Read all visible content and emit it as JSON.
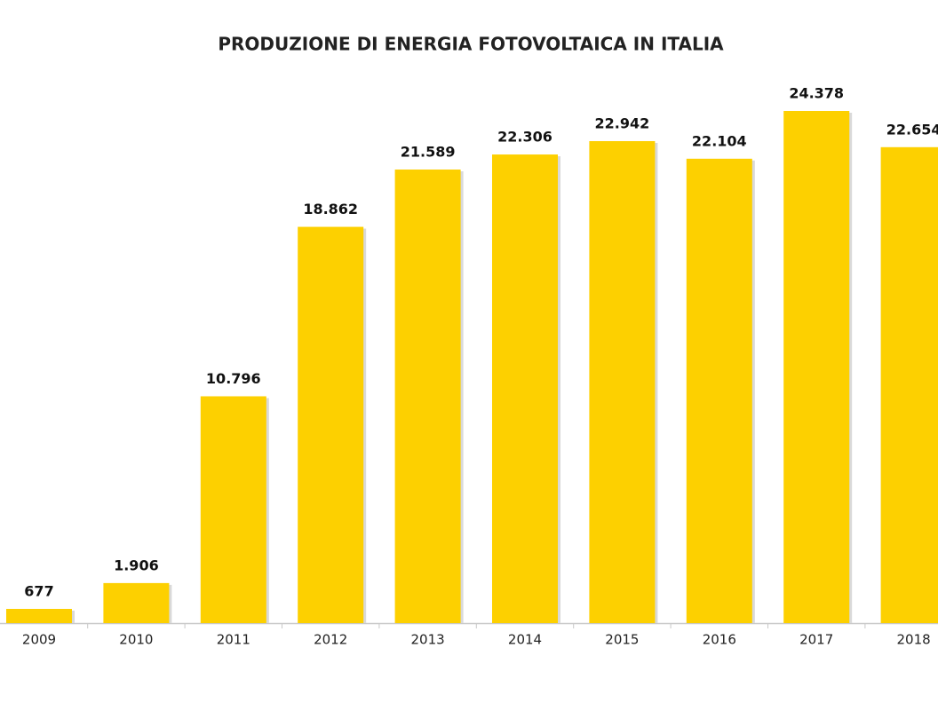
{
  "chart_data": {
    "type": "bar",
    "title": "PRODUZIONE DI ENERGIA FOTOVOLTAICA IN ITALIA",
    "categories": [
      "2009",
      "2010",
      "2011",
      "2012",
      "2013",
      "2014",
      "2015",
      "2016",
      "2017",
      "2018"
    ],
    "values": [
      677,
      1906,
      10796,
      18862,
      21589,
      22306,
      22942,
      22104,
      24378,
      22654
    ],
    "value_labels": [
      "677",
      "1.906",
      "10.796",
      "18.862",
      "21.589",
      "22.306",
      "22.942",
      "22.104",
      "24.378",
      "22.654"
    ],
    "color": "#fdd000"
  }
}
